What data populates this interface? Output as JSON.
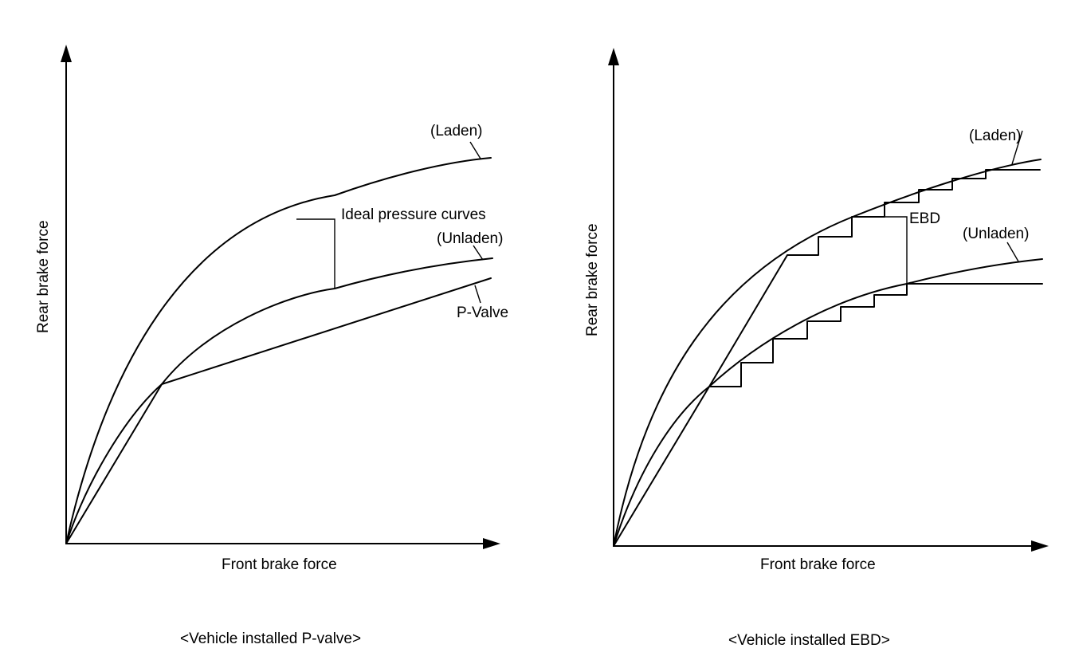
{
  "left_panel": {
    "caption": "<Vehicle installed P-valve>",
    "x_label": "Front brake force",
    "y_label": "Rear brake force",
    "laden_label": "(Laden)",
    "ideal_label": "Ideal pressure curves",
    "unladen_label": "(Unladen)",
    "pvalve_label": "P-Valve"
  },
  "right_panel": {
    "caption": "<Vehicle installed EBD>",
    "x_label": "Front brake force",
    "y_label": "Rear brake force",
    "laden_label": "(Laden)",
    "ebd_label": "EBD",
    "unladen_label": "(Unladen)"
  }
}
